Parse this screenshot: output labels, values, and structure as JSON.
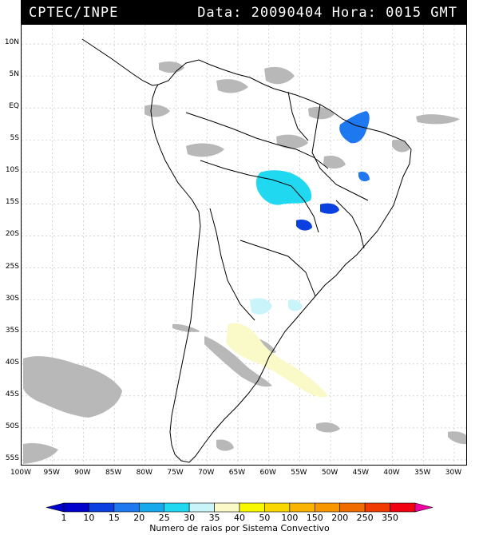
{
  "header": {
    "left_text": "CPTEC/INPE",
    "right_text": "Data: 20090404 Hora: 0015 GMT"
  },
  "axes": {
    "latitude_labels": [
      "10N",
      "5N",
      "EQ",
      "5S",
      "10S",
      "15S",
      "20S",
      "25S",
      "30S",
      "35S",
      "40S",
      "45S",
      "50S",
      "55S"
    ],
    "latitude_values": [
      10,
      5,
      0,
      -5,
      -10,
      -15,
      -20,
      -25,
      -30,
      -35,
      -40,
      -45,
      -50,
      -55
    ],
    "longitude_labels": [
      "100W",
      "95W",
      "90W",
      "85W",
      "80W",
      "75W",
      "70W",
      "65W",
      "60W",
      "55W",
      "50W",
      "45W",
      "40W",
      "35W",
      "30W"
    ],
    "longitude_values": [
      -100,
      -95,
      -90,
      -85,
      -80,
      -75,
      -70,
      -65,
      -60,
      -55,
      -50,
      -45,
      -40,
      -35,
      -30
    ]
  },
  "legend": {
    "caption": "Numero de raios por Sistema Convectivo",
    "bins": [
      {
        "label": "1",
        "color": "#0000cc"
      },
      {
        "label": "10",
        "color": "#0a3fe0"
      },
      {
        "label": "15",
        "color": "#1e78f0"
      },
      {
        "label": "20",
        "color": "#18a8ec"
      },
      {
        "label": "25",
        "color": "#20d8f0"
      },
      {
        "label": "30",
        "color": "#c8f4fa"
      },
      {
        "label": "35",
        "color": "#fafac8"
      },
      {
        "label": "40",
        "color": "#f8f800"
      },
      {
        "label": "50",
        "color": "#f8d800"
      },
      {
        "label": "100",
        "color": "#f8b400"
      },
      {
        "label": "150",
        "color": "#f89600"
      },
      {
        "label": "200",
        "color": "#f06c00"
      },
      {
        "label": "250",
        "color": "#f03c00"
      },
      {
        "label": "350",
        "color": "#f00010"
      }
    ],
    "end_color": "#f000a0"
  },
  "colors": {
    "cloud": "#b8b8b8",
    "coastline": "#000000"
  }
}
